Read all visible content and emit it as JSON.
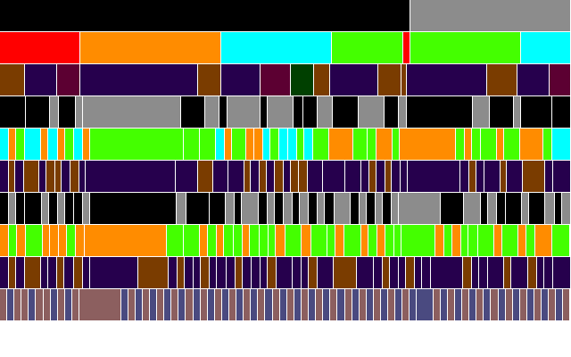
{
  "palette": {
    "k": "#000000",
    "g": "#8c8c8c",
    "r": "#ff0000",
    "o": "#ff8c00",
    "c": "#00ffff",
    "l": "#44ff00",
    "b": "#3a1b00",
    "p": "#26004d",
    "m": "#5c0032",
    "d": "#004000",
    "n": "#7a3c00",
    "t": "#8c5f5f",
    "s": "#4a4a80"
  },
  "levels": [
    {
      "cells": [
        [
          460,
          "k"
        ],
        [
          180,
          "g"
        ]
      ]
    },
    {
      "cells": [
        [
          90,
          "r"
        ],
        [
          158,
          "o"
        ],
        [
          124,
          "c"
        ],
        [
          80,
          "l"
        ],
        [
          8,
          "r"
        ],
        [
          124,
          "l"
        ],
        [
          56,
          "c"
        ]
      ]
    },
    {
      "cells": [
        [
          28,
          "n"
        ],
        [
          36,
          "p"
        ],
        [
          26,
          "m"
        ],
        [
          132,
          "p"
        ],
        [
          26,
          "n"
        ],
        [
          44,
          "p"
        ],
        [
          34,
          "m"
        ],
        [
          26,
          "d"
        ],
        [
          18,
          "n"
        ],
        [
          54,
          "p"
        ],
        [
          26,
          "n"
        ],
        [
          6,
          "n"
        ],
        [
          90,
          "p"
        ],
        [
          34,
          "n"
        ],
        [
          36,
          "p"
        ],
        [
          24,
          "m"
        ]
      ]
    },
    {
      "cells": [
        [
          28,
          "k"
        ],
        [
          26,
          "k"
        ],
        [
          10,
          "g"
        ],
        [
          18,
          "k"
        ],
        [
          8,
          "g"
        ],
        [
          106,
          "g"
        ],
        [
          26,
          "k"
        ],
        [
          16,
          "g"
        ],
        [
          8,
          "k"
        ],
        [
          36,
          "g"
        ],
        [
          8,
          "k"
        ],
        [
          28,
          "g"
        ],
        [
          10,
          "k"
        ],
        [
          16,
          "k"
        ],
        [
          16,
          "g"
        ],
        [
          28,
          "k"
        ],
        [
          28,
          "g"
        ],
        [
          16,
          "k"
        ],
        [
          8,
          "g"
        ],
        [
          72,
          "k"
        ],
        [
          18,
          "g"
        ],
        [
          26,
          "k"
        ],
        [
          8,
          "g"
        ],
        [
          34,
          "k"
        ],
        [
          20,
          "k"
        ]
      ]
    },
    {
      "cells": [
        [
          10,
          "c"
        ],
        [
          8,
          "o"
        ],
        [
          10,
          "l"
        ],
        [
          18,
          "c"
        ],
        [
          8,
          "o"
        ],
        [
          10,
          "c"
        ],
        [
          8,
          "o"
        ],
        [
          10,
          "l"
        ],
        [
          10,
          "c"
        ],
        [
          8,
          "o"
        ],
        [
          104,
          "l"
        ],
        [
          18,
          "l"
        ],
        [
          18,
          "l"
        ],
        [
          10,
          "c"
        ],
        [
          8,
          "o"
        ],
        [
          16,
          "l"
        ],
        [
          8,
          "o"
        ],
        [
          10,
          "o"
        ],
        [
          8,
          "c"
        ],
        [
          10,
          "l"
        ],
        [
          10,
          "c"
        ],
        [
          10,
          "c"
        ],
        [
          8,
          "l"
        ],
        [
          10,
          "c"
        ],
        [
          18,
          "l"
        ],
        [
          26,
          "o"
        ],
        [
          16,
          "l"
        ],
        [
          10,
          "l"
        ],
        [
          18,
          "o"
        ],
        [
          8,
          "l"
        ],
        [
          62,
          "o"
        ],
        [
          10,
          "l"
        ],
        [
          8,
          "o"
        ],
        [
          10,
          "l"
        ],
        [
          18,
          "l"
        ],
        [
          8,
          "o"
        ],
        [
          18,
          "l"
        ],
        [
          26,
          "o"
        ],
        [
          10,
          "l"
        ],
        [
          20,
          "c"
        ]
      ]
    },
    {
      "cells": [
        [
          10,
          "p"
        ],
        [
          8,
          "n"
        ],
        [
          10,
          "p"
        ],
        [
          18,
          "n"
        ],
        [
          8,
          "p"
        ],
        [
          10,
          "n"
        ],
        [
          8,
          "n"
        ],
        [
          10,
          "p"
        ],
        [
          10,
          "n"
        ],
        [
          8,
          "p"
        ],
        [
          104,
          "p"
        ],
        [
          26,
          "p"
        ],
        [
          18,
          "n"
        ],
        [
          18,
          "p"
        ],
        [
          18,
          "p"
        ],
        [
          8,
          "n"
        ],
        [
          10,
          "p"
        ],
        [
          8,
          "n"
        ],
        [
          10,
          "p"
        ],
        [
          10,
          "n"
        ],
        [
          8,
          "p"
        ],
        [
          10,
          "n"
        ],
        [
          10,
          "n"
        ],
        [
          18,
          "p"
        ],
        [
          26,
          "p"
        ],
        [
          18,
          "p"
        ],
        [
          10,
          "p"
        ],
        [
          8,
          "n"
        ],
        [
          10,
          "p"
        ],
        [
          8,
          "n"
        ],
        [
          10,
          "p"
        ],
        [
          8,
          "p"
        ],
        [
          62,
          "p"
        ],
        [
          10,
          "p"
        ],
        [
          8,
          "n"
        ],
        [
          10,
          "p"
        ],
        [
          18,
          "p"
        ],
        [
          8,
          "n"
        ],
        [
          18,
          "p"
        ],
        [
          26,
          "n"
        ],
        [
          10,
          "p"
        ],
        [
          20,
          "p"
        ]
      ]
    },
    {
      "cells": [
        [
          10,
          "k"
        ],
        [
          8,
          "g"
        ],
        [
          10,
          "k"
        ],
        [
          18,
          "k"
        ],
        [
          8,
          "g"
        ],
        [
          10,
          "k"
        ],
        [
          8,
          "g"
        ],
        [
          10,
          "k"
        ],
        [
          10,
          "k"
        ],
        [
          8,
          "g"
        ],
        [
          96,
          "k"
        ],
        [
          10,
          "g"
        ],
        [
          26,
          "k"
        ],
        [
          18,
          "k"
        ],
        [
          10,
          "g"
        ],
        [
          8,
          "k"
        ],
        [
          18,
          "g"
        ],
        [
          10,
          "k"
        ],
        [
          8,
          "g"
        ],
        [
          10,
          "k"
        ],
        [
          10,
          "g"
        ],
        [
          8,
          "k"
        ],
        [
          10,
          "g"
        ],
        [
          10,
          "k"
        ],
        [
          8,
          "g"
        ],
        [
          10,
          "k"
        ],
        [
          18,
          "g"
        ],
        [
          10,
          "k"
        ],
        [
          8,
          "g"
        ],
        [
          10,
          "k"
        ],
        [
          8,
          "g"
        ],
        [
          10,
          "k"
        ],
        [
          8,
          "g"
        ],
        [
          46,
          "g"
        ],
        [
          26,
          "k"
        ],
        [
          18,
          "g"
        ],
        [
          8,
          "k"
        ],
        [
          10,
          "g"
        ],
        [
          10,
          "k"
        ],
        [
          18,
          "k"
        ],
        [
          8,
          "g"
        ],
        [
          18,
          "k"
        ],
        [
          10,
          "g"
        ],
        [
          8,
          "k"
        ],
        [
          10,
          "g"
        ]
      ]
    },
    {
      "cells": [
        [
          10,
          "o"
        ],
        [
          8,
          "l"
        ],
        [
          10,
          "o"
        ],
        [
          18,
          "l"
        ],
        [
          8,
          "o"
        ],
        [
          10,
          "o"
        ],
        [
          8,
          "o"
        ],
        [
          10,
          "l"
        ],
        [
          10,
          "o"
        ],
        [
          88,
          "o"
        ],
        [
          18,
          "l"
        ],
        [
          18,
          "l"
        ],
        [
          8,
          "o"
        ],
        [
          10,
          "l"
        ],
        [
          8,
          "o"
        ],
        [
          10,
          "l"
        ],
        [
          10,
          "l"
        ],
        [
          8,
          "o"
        ],
        [
          10,
          "l"
        ],
        [
          10,
          "l"
        ],
        [
          8,
          "l"
        ],
        [
          10,
          "o"
        ],
        [
          18,
          "l"
        ],
        [
          10,
          "o"
        ],
        [
          18,
          "l"
        ],
        [
          8,
          "l"
        ],
        [
          10,
          "o"
        ],
        [
          18,
          "l"
        ],
        [
          8,
          "o"
        ],
        [
          10,
          "l"
        ],
        [
          8,
          "o"
        ],
        [
          10,
          "l"
        ],
        [
          8,
          "l"
        ],
        [
          36,
          "l"
        ],
        [
          10,
          "o"
        ],
        [
          8,
          "l"
        ],
        [
          10,
          "o"
        ],
        [
          8,
          "l"
        ],
        [
          10,
          "l"
        ],
        [
          18,
          "l"
        ],
        [
          8,
          "o"
        ],
        [
          18,
          "l"
        ],
        [
          8,
          "o"
        ],
        [
          10,
          "l"
        ],
        [
          18,
          "o"
        ],
        [
          20,
          "l"
        ]
      ]
    },
    {
      "cells": [
        [
          10,
          "p"
        ],
        [
          8,
          "n"
        ],
        [
          10,
          "p"
        ],
        [
          18,
          "n"
        ],
        [
          8,
          "p"
        ],
        [
          10,
          "p"
        ],
        [
          8,
          "n"
        ],
        [
          10,
          "p"
        ],
        [
          10,
          "n"
        ],
        [
          8,
          "p"
        ],
        [
          54,
          "p"
        ],
        [
          34,
          "n"
        ],
        [
          10,
          "p"
        ],
        [
          8,
          "n"
        ],
        [
          10,
          "p"
        ],
        [
          8,
          "p"
        ],
        [
          10,
          "n"
        ],
        [
          8,
          "p"
        ],
        [
          10,
          "p"
        ],
        [
          10,
          "p"
        ],
        [
          8,
          "n"
        ],
        [
          10,
          "p"
        ],
        [
          10,
          "p"
        ],
        [
          8,
          "p"
        ],
        [
          10,
          "n"
        ],
        [
          18,
          "p"
        ],
        [
          10,
          "p"
        ],
        [
          8,
          "p"
        ],
        [
          10,
          "n"
        ],
        [
          18,
          "p"
        ],
        [
          26,
          "n"
        ],
        [
          18,
          "p"
        ],
        [
          10,
          "p"
        ],
        [
          8,
          "n"
        ],
        [
          10,
          "p"
        ],
        [
          8,
          "p"
        ],
        [
          10,
          "n"
        ],
        [
          8,
          "p"
        ],
        [
          10,
          "p"
        ],
        [
          36,
          "p"
        ],
        [
          10,
          "n"
        ],
        [
          8,
          "p"
        ],
        [
          10,
          "p"
        ],
        [
          18,
          "p"
        ],
        [
          8,
          "n"
        ],
        [
          18,
          "p"
        ],
        [
          10,
          "n"
        ],
        [
          8,
          "p"
        ],
        [
          10,
          "p"
        ],
        [
          20,
          "p"
        ]
      ]
    },
    {
      "cells": [
        [
          8,
          "t"
        ],
        [
          8,
          "s"
        ],
        [
          8,
          "t"
        ],
        [
          8,
          "t"
        ],
        [
          8,
          "s"
        ],
        [
          8,
          "t"
        ],
        [
          8,
          "t"
        ],
        [
          8,
          "s"
        ],
        [
          8,
          "t"
        ],
        [
          8,
          "s"
        ],
        [
          8,
          "t"
        ],
        [
          46,
          "t"
        ],
        [
          8,
          "s"
        ],
        [
          8,
          "t"
        ],
        [
          8,
          "s"
        ],
        [
          8,
          "t"
        ],
        [
          8,
          "s"
        ],
        [
          8,
          "t"
        ],
        [
          8,
          "s"
        ],
        [
          8,
          "t"
        ],
        [
          8,
          "s"
        ],
        [
          8,
          "t"
        ],
        [
          8,
          "s"
        ],
        [
          8,
          "t"
        ],
        [
          8,
          "s"
        ],
        [
          8,
          "t"
        ],
        [
          8,
          "s"
        ],
        [
          8,
          "t"
        ],
        [
          8,
          "s"
        ],
        [
          8,
          "t"
        ],
        [
          8,
          "s"
        ],
        [
          8,
          "t"
        ],
        [
          8,
          "s"
        ],
        [
          8,
          "t"
        ],
        [
          8,
          "s"
        ],
        [
          8,
          "t"
        ],
        [
          8,
          "s"
        ],
        [
          8,
          "t"
        ],
        [
          8,
          "s"
        ],
        [
          8,
          "t"
        ],
        [
          8,
          "s"
        ],
        [
          8,
          "t"
        ],
        [
          8,
          "s"
        ],
        [
          8,
          "t"
        ],
        [
          8,
          "s"
        ],
        [
          8,
          "t"
        ],
        [
          8,
          "s"
        ],
        [
          8,
          "t"
        ],
        [
          8,
          "s"
        ],
        [
          8,
          "t"
        ],
        [
          8,
          "s"
        ],
        [
          8,
          "t"
        ],
        [
          8,
          "s"
        ],
        [
          18,
          "s"
        ],
        [
          8,
          "t"
        ],
        [
          8,
          "s"
        ],
        [
          8,
          "t"
        ],
        [
          8,
          "s"
        ],
        [
          8,
          "t"
        ],
        [
          8,
          "s"
        ],
        [
          8,
          "t"
        ],
        [
          8,
          "s"
        ],
        [
          8,
          "t"
        ],
        [
          8,
          "s"
        ],
        [
          8,
          "t"
        ],
        [
          8,
          "s"
        ],
        [
          8,
          "t"
        ],
        [
          8,
          "s"
        ],
        [
          8,
          "t"
        ],
        [
          8,
          "s"
        ],
        [
          8,
          "t"
        ],
        [
          8,
          "s"
        ],
        [
          8,
          "t"
        ]
      ]
    }
  ]
}
